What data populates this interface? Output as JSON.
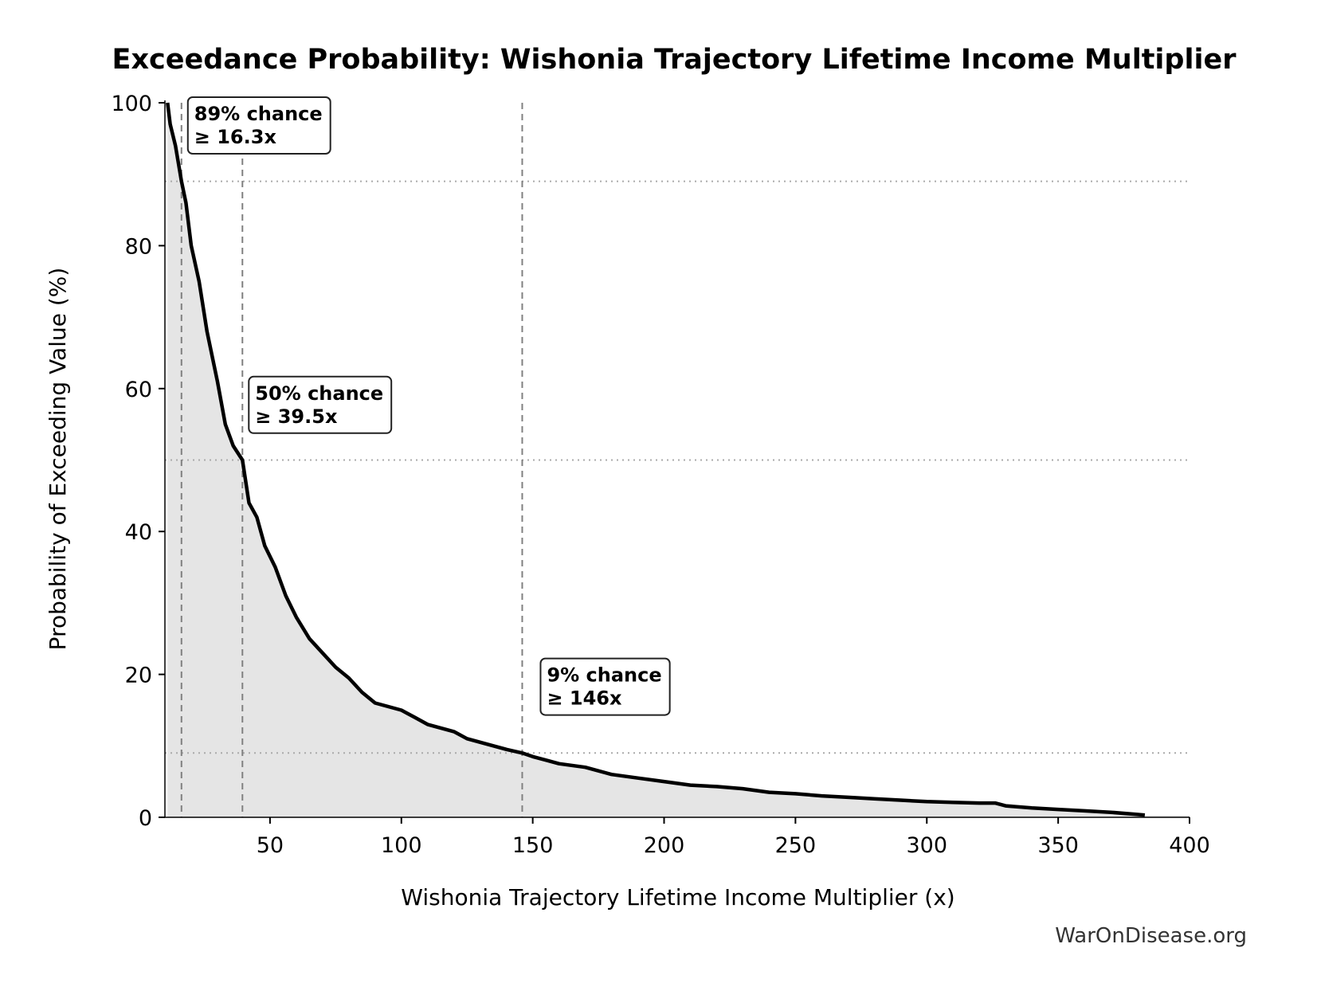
{
  "chart_data": {
    "type": "area",
    "title": "Exceedance Probability: Wishonia Trajectory Lifetime Income Multiplier",
    "xlabel": "Wishonia Trajectory Lifetime Income Multiplier (x)",
    "ylabel": "Probability of Exceeding Value (%)",
    "xlim": [
      10,
      400
    ],
    "ylim": [
      0,
      100
    ],
    "xticks": [
      50,
      100,
      150,
      200,
      250,
      300,
      350,
      400
    ],
    "yticks": [
      0,
      20,
      40,
      60,
      80,
      100
    ],
    "grid": false,
    "line_color": "#000000",
    "fill_color": "#e5e5e5",
    "x": [
      11,
      12,
      14,
      16.3,
      18,
      20,
      23,
      26,
      30,
      33,
      36,
      39.5,
      42,
      45,
      48,
      52,
      56,
      60,
      65,
      70,
      75,
      80,
      85,
      90,
      95,
      100,
      105,
      110,
      115,
      120,
      125,
      130,
      135,
      140,
      146,
      150,
      155,
      160,
      170,
      180,
      190,
      200,
      210,
      220,
      230,
      240,
      250,
      260,
      270,
      280,
      290,
      300,
      310,
      320,
      326,
      330,
      340,
      350,
      360,
      370,
      380,
      383
    ],
    "values": [
      100,
      97,
      94,
      89,
      86,
      80,
      75,
      68,
      61,
      55,
      52,
      50,
      44,
      42,
      38,
      35,
      31,
      28,
      25,
      23,
      21,
      19.5,
      17.5,
      16,
      15.5,
      15,
      14,
      13,
      12.5,
      12,
      11,
      10.5,
      10,
      9.5,
      9,
      8.5,
      8,
      7.5,
      7,
      6,
      5.5,
      5,
      4.5,
      4.3,
      4,
      3.5,
      3.3,
      3,
      2.8,
      2.6,
      2.4,
      2.2,
      2.1,
      2.0,
      2.0,
      1.6,
      1.3,
      1.1,
      0.9,
      0.7,
      0.4,
      0.3
    ],
    "reference_lines": {
      "vertical_dashed_x": [
        16.3,
        39.5,
        146
      ],
      "horizontal_dotted_y": [
        89,
        50,
        9
      ]
    },
    "annotations": [
      {
        "line1": "89% chance",
        "line2": "≥ 16.3x",
        "x": 16.3,
        "y": 89
      },
      {
        "line1": "50% chance",
        "line2": "≥ 39.5x",
        "x": 39.5,
        "y": 50
      },
      {
        "line1": "9% chance",
        "line2": "≥ 146x",
        "x": 146,
        "y": 9
      }
    ]
  },
  "watermark": "WarOnDisease.org"
}
